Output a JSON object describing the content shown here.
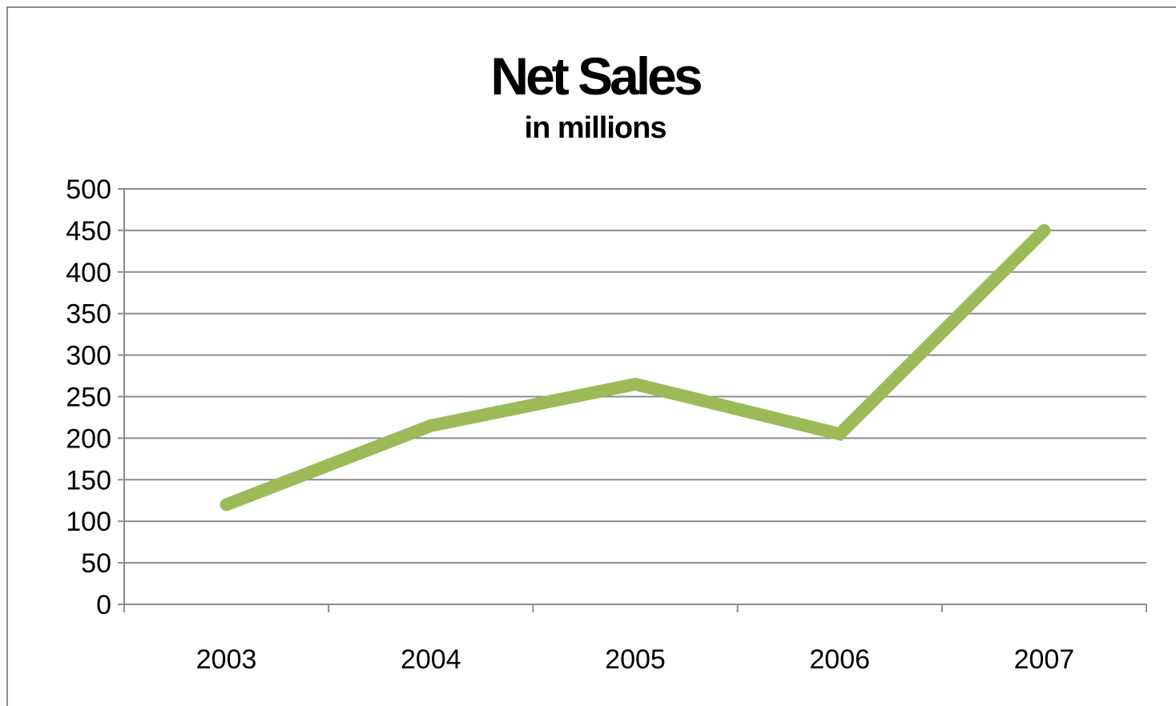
{
  "chart_data": {
    "type": "line",
    "title": "Net Sales",
    "subtitle": "in millions",
    "xlabel": "",
    "ylabel": "",
    "categories": [
      "2003",
      "2004",
      "2005",
      "2006",
      "2007"
    ],
    "series": [
      {
        "values": [
          120,
          215,
          265,
          205,
          450
        ],
        "color": "#9bbb59"
      }
    ],
    "ylim": [
      0,
      500
    ],
    "yticks": [
      0,
      50,
      100,
      150,
      200,
      250,
      300,
      350,
      400,
      450,
      500
    ],
    "grid": true,
    "legend": "none"
  }
}
